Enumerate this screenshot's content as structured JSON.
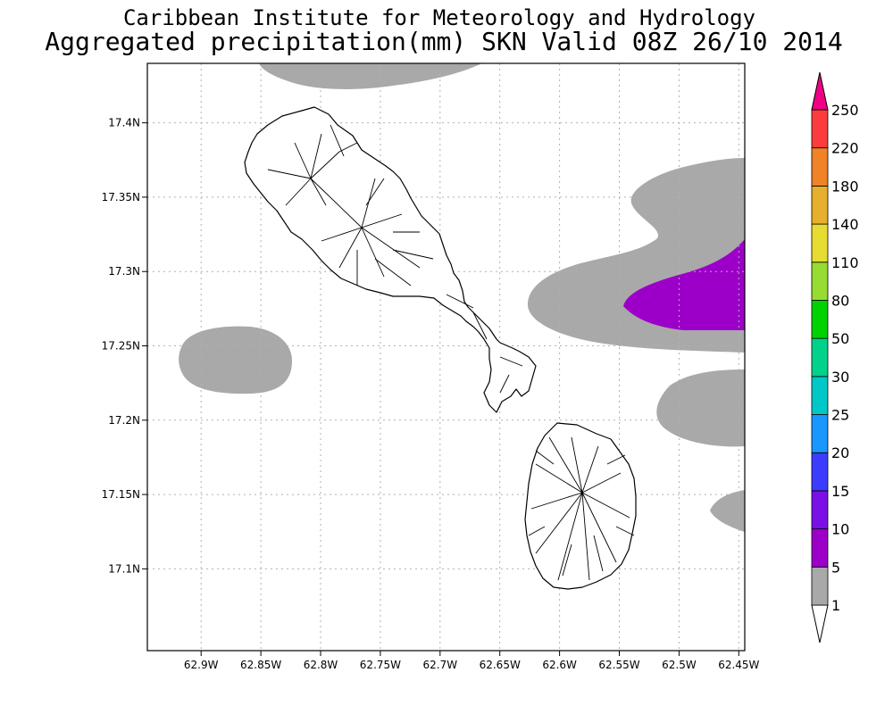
{
  "header": {
    "title": "Caribbean Institute for Meteorology and Hydrology",
    "subtitle": "Aggregated precipitation(mm) SKN Valid 08Z 26/10 2014"
  },
  "map": {
    "lon_range": [
      -62.945,
      -62.445
    ],
    "lat_range": [
      17.045,
      17.44
    ],
    "lon_ticks": [
      {
        "value": -62.9,
        "label": "62.9W"
      },
      {
        "value": -62.85,
        "label": "62.85W"
      },
      {
        "value": -62.8,
        "label": "62.8W"
      },
      {
        "value": -62.75,
        "label": "62.75W"
      },
      {
        "value": -62.7,
        "label": "62.7W"
      },
      {
        "value": -62.65,
        "label": "62.65W"
      },
      {
        "value": -62.6,
        "label": "62.6W"
      },
      {
        "value": -62.55,
        "label": "62.55W"
      },
      {
        "value": -62.5,
        "label": "62.5W"
      },
      {
        "value": -62.45,
        "label": "62.45W"
      }
    ],
    "lat_ticks": [
      {
        "value": 17.1,
        "label": "17.1N"
      },
      {
        "value": 17.15,
        "label": "17.15N"
      },
      {
        "value": 17.2,
        "label": "17.2N"
      },
      {
        "value": 17.25,
        "label": "17.25N"
      },
      {
        "value": 17.3,
        "label": "17.3N"
      },
      {
        "value": 17.35,
        "label": "17.35N"
      },
      {
        "value": 17.4,
        "label": "17.4N"
      }
    ],
    "grid": true,
    "colors": {
      "land_fill": "#ffffff",
      "coastline": "#000000",
      "grid": "#b0b0b0",
      "frame": "#000000"
    }
  },
  "colorbar": {
    "placement": "right",
    "levels": [
      {
        "label": "1",
        "color": "#a9a9a9"
      },
      {
        "label": "5",
        "color": "#9c00c8"
      },
      {
        "label": "10",
        "color": "#7a10e6"
      },
      {
        "label": "15",
        "color": "#3c3cff"
      },
      {
        "label": "20",
        "color": "#1a96ff"
      },
      {
        "label": "25",
        "color": "#00c8c8"
      },
      {
        "label": "30",
        "color": "#00d28c"
      },
      {
        "label": "50",
        "color": "#00d200"
      },
      {
        "label": "80",
        "color": "#96dc32"
      },
      {
        "label": "110",
        "color": "#e6dc32"
      },
      {
        "label": "140",
        "color": "#e6af2d"
      },
      {
        "label": "180",
        "color": "#f08228"
      },
      {
        "label": "220",
        "color": "#fa3c3c"
      },
      {
        "label": "250",
        "color": "#f00082"
      }
    ]
  }
}
